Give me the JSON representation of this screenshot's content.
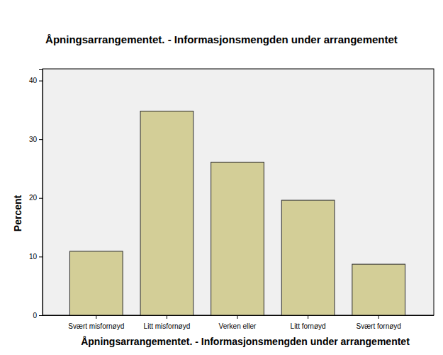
{
  "chart_data": {
    "type": "bar",
    "title": "Åpningsarrangementet. - Informasjonsmengden under arrangementet",
    "x_label": "Åpningsarrangementet. - Informasjonsmengden under arrangementet",
    "y_label": "Percent",
    "categories": [
      "Svært misfornøyd",
      "Litt misfornøyd",
      "Verken eller",
      "Litt fornøyd",
      "Svært fornøyd"
    ],
    "values": [
      10.9,
      34.8,
      26.1,
      19.6,
      8.7
    ],
    "color": "#d3ce97",
    "ylim": [
      0,
      42
    ],
    "yticks": [
      0,
      10,
      20,
      30,
      40
    ],
    "grid": false
  }
}
